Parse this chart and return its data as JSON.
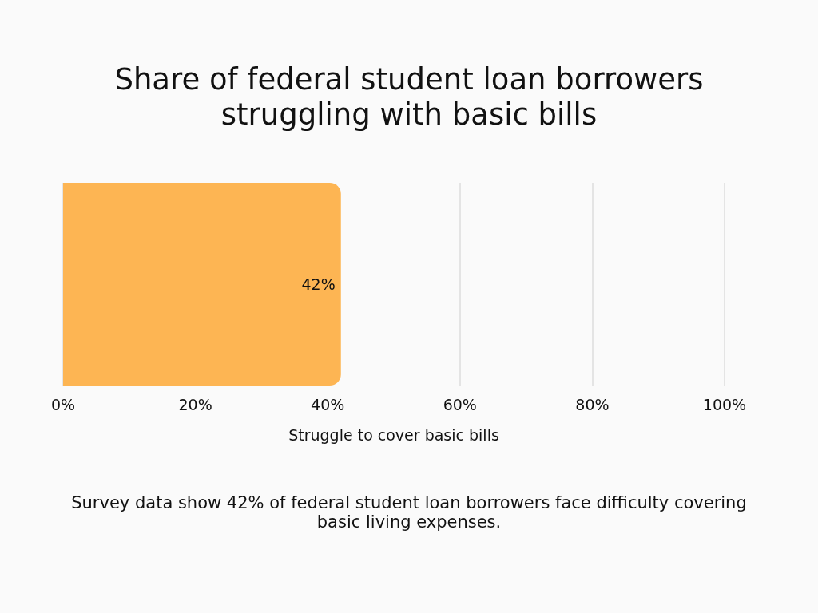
{
  "chart_data": {
    "type": "bar",
    "orientation": "horizontal",
    "title": "Share of federal student loan borrowers struggling with basic bills",
    "xlabel": "Struggle to cover basic bills",
    "categories": [
      null
    ],
    "values": [
      42
    ],
    "value_labels": [
      "42%"
    ],
    "color": "#fdb553",
    "xlim": [
      0,
      100
    ],
    "xticks": [
      {
        "value": 0,
        "label": "0%"
      },
      {
        "value": 20,
        "label": "20%"
      },
      {
        "value": 40,
        "label": "40%"
      },
      {
        "value": 60,
        "label": "60%"
      },
      {
        "value": 80,
        "label": "80%"
      },
      {
        "value": 100,
        "label": "100%"
      }
    ],
    "grid": "x",
    "tick_labels": "x",
    "annotations": [
      "Survey data show 42% of federal student loan borrowers face difficulty covering basic living expenses."
    ]
  }
}
